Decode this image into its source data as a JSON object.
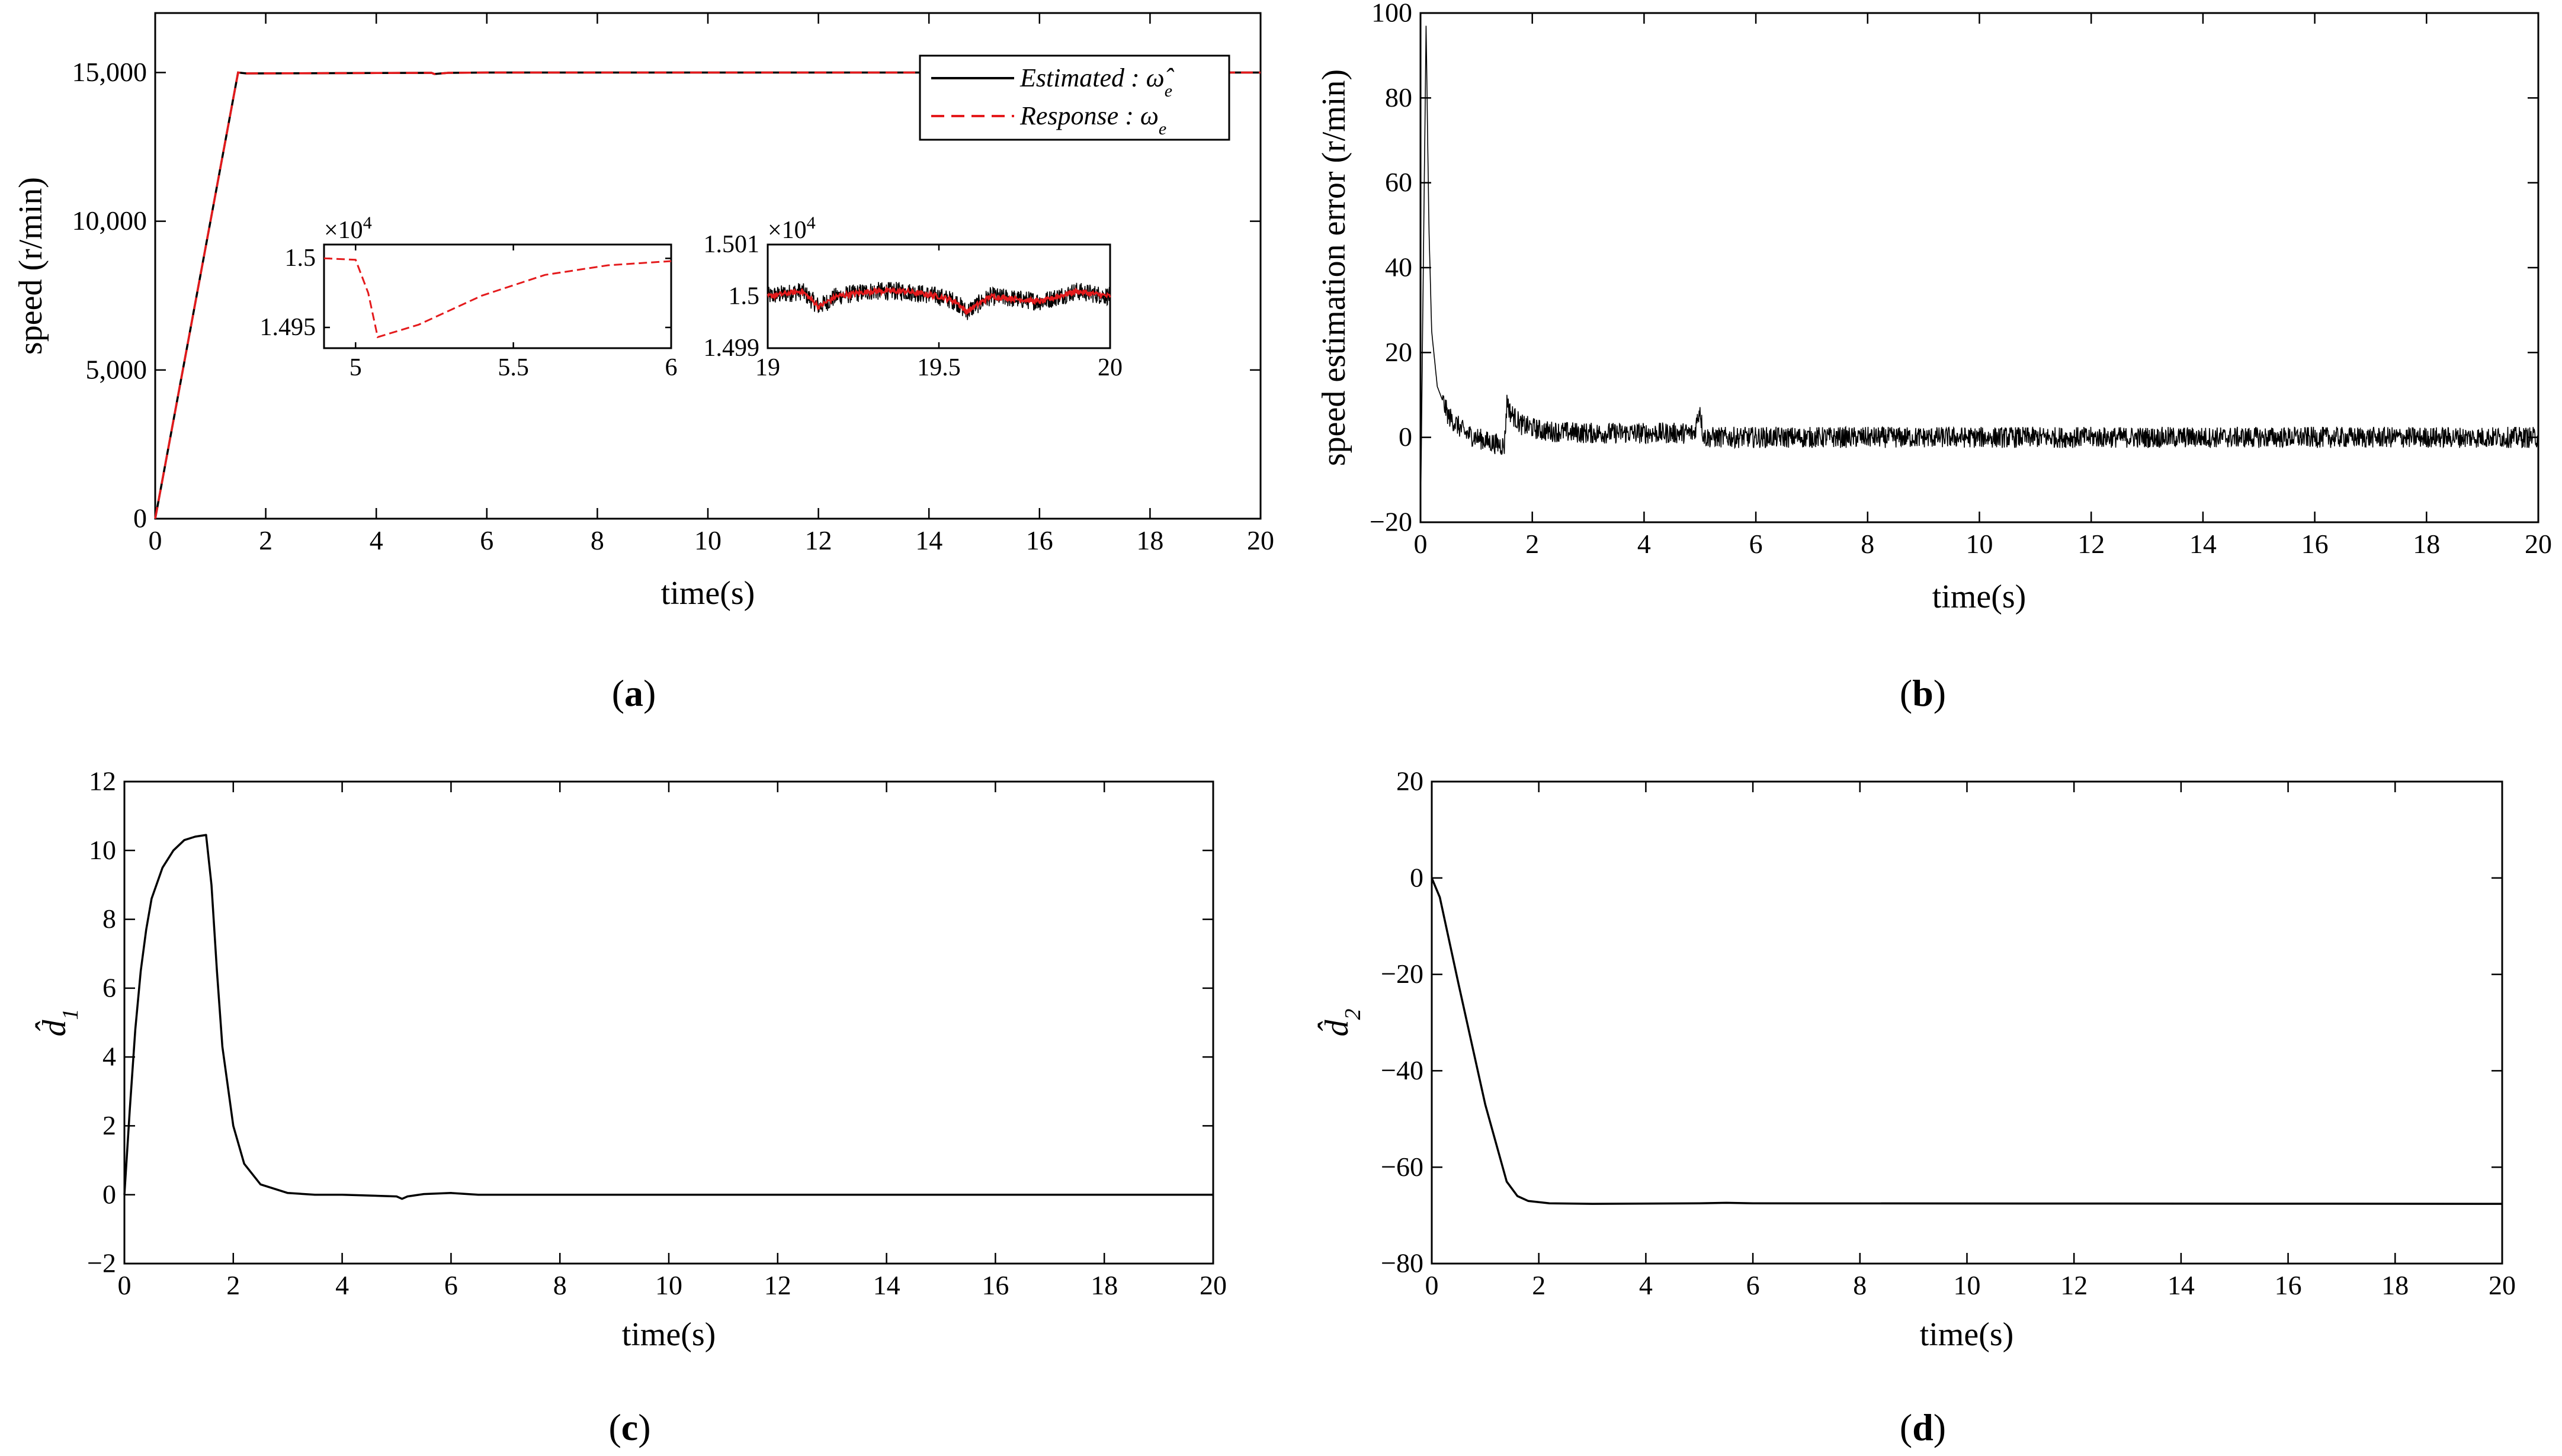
{
  "figure_captions": [
    "(a)",
    "(b)",
    "(c)",
    "(d)"
  ],
  "colors": {
    "estimated": "#000000",
    "response": "#e41a1c"
  },
  "chart_data": [
    {
      "type": "line",
      "panel": "a",
      "caption": {
        "open": "(",
        "letter": "a",
        "close": ")"
      },
      "xlabel": "time(s)",
      "ylabel": "speed (r/min)",
      "xlim": [
        0,
        20
      ],
      "ylim": [
        0,
        17000
      ],
      "xticks": [
        0,
        2,
        4,
        6,
        8,
        10,
        12,
        14,
        16,
        18,
        20
      ],
      "xtick_labels": [
        "0",
        "2",
        "4",
        "6",
        "8",
        "10",
        "12",
        "14",
        "16",
        "18",
        "20"
      ],
      "yticks": [
        0,
        5000,
        10000,
        15000
      ],
      "ytick_labels": [
        "0",
        "5,000",
        "10,000",
        "15,000"
      ],
      "legend": [
        {
          "name": "Estimated",
          "symbol": "ω̂",
          "sub": "e",
          "style": "solid"
        },
        {
          "name": "Response",
          "symbol": "ω",
          "sub": "e",
          "style": "dashed"
        }
      ],
      "series": [
        {
          "name": "Estimated",
          "x": [
            0,
            1.5,
            1.65,
            5,
            5.05,
            5.3,
            6,
            20
          ],
          "y": [
            0,
            15000,
            14970,
            14990,
            14950,
            14990,
            15000,
            15000
          ]
        },
        {
          "name": "Response",
          "x": [
            0,
            1.5,
            1.65,
            5,
            5.05,
            5.3,
            6,
            20
          ],
          "y": [
            0,
            15000,
            14970,
            14990,
            14950,
            14990,
            15000,
            15000
          ]
        }
      ],
      "insets": [
        {
          "xlim": [
            4.9,
            6
          ],
          "ylim": [
            14935,
            15010
          ],
          "xticks": [
            5,
            5.5,
            6
          ],
          "xtick_labels": [
            "5",
            "5.5",
            "6"
          ],
          "yticks": [
            14950,
            15000
          ],
          "ytick_labels": [
            "1.495",
            "1.5"
          ],
          "multiplier_base": "×10",
          "multiplier_exp": "4",
          "series": [
            {
              "name": "Response",
              "x": [
                4.9,
                5.0,
                5.04,
                5.07,
                5.2,
                5.4,
                5.6,
                5.8,
                6.0
              ],
              "y": [
                15000,
                14999,
                14975,
                14943,
                14952,
                14973,
                14988,
                14995,
                14998
              ]
            }
          ]
        },
        {
          "xlim": [
            19,
            20
          ],
          "ylim": [
            14990,
            15010
          ],
          "xticks": [
            19,
            19.5,
            20
          ],
          "xtick_labels": [
            "19",
            "19.5",
            "20"
          ],
          "yticks": [
            14990,
            15000,
            15010
          ],
          "ytick_labels": [
            "1.499",
            "1.5",
            "1.501"
          ],
          "multiplier_base": "×10",
          "multiplier_exp": "4",
          "series": [
            {
              "name": "Estimated",
              "noise": 1.8,
              "x": [
                19,
                19.1,
                19.15,
                19.2,
                19.3,
                19.4,
                19.5,
                19.55,
                19.58,
                19.65,
                19.8,
                19.9,
                20
              ],
              "y": [
                15000,
                15001,
                14998,
                15000,
                15001,
                15001,
                15000,
                14999,
                14997,
                15000,
                14999,
                15001,
                15000
              ]
            },
            {
              "name": "Response",
              "noise": 0.5,
              "x": [
                19,
                19.1,
                19.15,
                19.2,
                19.3,
                19.4,
                19.5,
                19.55,
                19.58,
                19.65,
                19.8,
                19.9,
                20
              ],
              "y": [
                15000,
                15001,
                14998,
                15000,
                15001,
                15001,
                15000,
                14999,
                14997,
                15000,
                14999,
                15001,
                15000
              ]
            }
          ]
        }
      ]
    },
    {
      "type": "line",
      "panel": "b",
      "caption": {
        "open": "(",
        "letter": "b",
        "close": ")"
      },
      "xlabel": "time(s)",
      "ylabel": "speed estimation error (r/min)",
      "xlim": [
        0,
        20
      ],
      "ylim": [
        -20,
        100
      ],
      "xticks": [
        0,
        2,
        4,
        6,
        8,
        10,
        12,
        14,
        16,
        18,
        20
      ],
      "xtick_labels": [
        "0",
        "2",
        "4",
        "6",
        "8",
        "10",
        "12",
        "14",
        "16",
        "18",
        "20"
      ],
      "yticks": [
        -20,
        0,
        20,
        40,
        60,
        80,
        100
      ],
      "ytick_labels": [
        "−20",
        "0",
        "20",
        "40",
        "60",
        "80",
        "100"
      ],
      "series": [
        {
          "name": "speed estimation error",
          "noise_after": 1.6,
          "noise": 2.5,
          "x": [
            0,
            0.05,
            0.1,
            0.15,
            0.2,
            0.3,
            0.5,
            0.8,
            1.2,
            1.5,
            1.55,
            1.6,
            1.8,
            2.2,
            3,
            4.9,
            5.0,
            5.05,
            5.1,
            20
          ],
          "y": [
            -20,
            40,
            97,
            50,
            25,
            12,
            5,
            1,
            -1,
            -2,
            9,
            6,
            3,
            1.5,
            1,
            1,
            7,
            1,
            0,
            0
          ]
        }
      ]
    },
    {
      "type": "line",
      "panel": "c",
      "caption": {
        "open": "(",
        "letter": "c",
        "close": ")"
      },
      "xlabel": "time(s)",
      "ylabel_base": "d̂",
      "ylabel_sub": "1",
      "xlim": [
        0,
        20
      ],
      "ylim": [
        -2,
        12
      ],
      "xticks": [
        0,
        2,
        4,
        6,
        8,
        10,
        12,
        14,
        16,
        18,
        20
      ],
      "xtick_labels": [
        "0",
        "2",
        "4",
        "6",
        "8",
        "10",
        "12",
        "14",
        "16",
        "18",
        "20"
      ],
      "yticks": [
        -2,
        0,
        2,
        4,
        6,
        8,
        10,
        12
      ],
      "ytick_labels": [
        "−2",
        "0",
        "2",
        "4",
        "6",
        "8",
        "10",
        "12"
      ],
      "series": [
        {
          "name": "d1",
          "x": [
            0,
            0.1,
            0.2,
            0.3,
            0.4,
            0.5,
            0.7,
            0.9,
            1.1,
            1.3,
            1.5,
            1.6,
            1.7,
            1.8,
            2.0,
            2.2,
            2.5,
            3.0,
            3.5,
            4.0,
            5.0,
            5.1,
            5.2,
            5.5,
            6.0,
            6.5,
            20
          ],
          "y": [
            0,
            2.5,
            4.8,
            6.5,
            7.7,
            8.6,
            9.5,
            10.0,
            10.3,
            10.4,
            10.45,
            9.0,
            6.5,
            4.3,
            2.0,
            0.9,
            0.3,
            0.05,
            0.0,
            0.0,
            -0.05,
            -0.12,
            -0.05,
            0.02,
            0.05,
            0.0,
            0.0
          ]
        }
      ]
    },
    {
      "type": "line",
      "panel": "d",
      "caption": {
        "open": "(",
        "letter": "d",
        "close": ")"
      },
      "xlabel": "time(s)",
      "ylabel_base": "d̂",
      "ylabel_sub": "2",
      "xlim": [
        0,
        20
      ],
      "ylim": [
        -80,
        20
      ],
      "xticks": [
        0,
        2,
        4,
        6,
        8,
        10,
        12,
        14,
        16,
        18,
        20
      ],
      "xtick_labels": [
        "0",
        "2",
        "4",
        "6",
        "8",
        "10",
        "12",
        "14",
        "16",
        "18",
        "20"
      ],
      "yticks": [
        -80,
        -60,
        -40,
        -20,
        0,
        20
      ],
      "ytick_labels": [
        "−80",
        "−60",
        "−40",
        "−20",
        "0",
        "20"
      ],
      "series": [
        {
          "name": "d2",
          "x": [
            0,
            0.15,
            0.5,
            1.0,
            1.4,
            1.6,
            1.8,
            2.2,
            3,
            5,
            5.5,
            6,
            20
          ],
          "y": [
            0,
            -4,
            -22,
            -47,
            -63,
            -66,
            -67,
            -67.5,
            -67.6,
            -67.5,
            -67.4,
            -67.5,
            -67.6
          ]
        }
      ]
    }
  ]
}
